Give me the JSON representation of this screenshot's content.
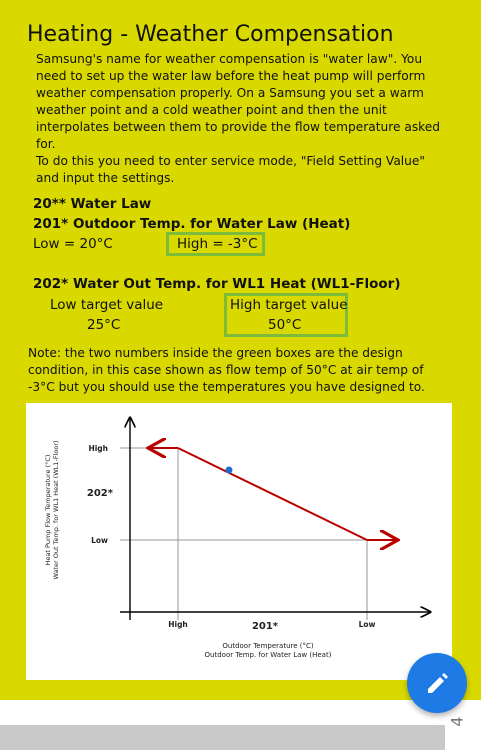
{
  "title": "Heating - Weather Compensation",
  "paragraphs": [
    "Samsung's name for weather compensation is \"water law\". You need to set up the water law before the heat pump will perform weather compensation properly. On a Samsung you set a warm weather point and a cold weather point and then the unit interpolates between them to provide the flow temperature asked for.",
    "To do this you need to enter service mode, \"Field Setting Value\" and input the settings."
  ],
  "water_law": {
    "heading": "20** Water Law",
    "subheading": "201* Outdoor Temp. for Water Law (Heat)",
    "low": "Low = 20°C",
    "high": "High = -3°C"
  },
  "flow": {
    "heading": "202* Water Out Temp. for WL1 Heat (WL1-Floor)",
    "low_label": "Low target value",
    "low_value": "25°C",
    "high_label": "High target value",
    "high_value": "50°C"
  },
  "note": "Note: the two numbers inside the green boxes are the design condition, in this case shown as flow temp of 50°C at air temp of -3°C but you should use the temperatures you have designed to.",
  "diagram": {
    "y_axis_title": [
      "Heat Pump Flow Temperature (°C)",
      "Water Out Temp. for WL1 Heat (WL1-Floor)"
    ],
    "y_high": "High",
    "y_code": "202*",
    "y_low": "Low",
    "x_high": "High",
    "x_code": "201*",
    "x_low": "Low",
    "x_axis_title": [
      "Outdoor Temperature (°C)",
      "Outdoor Temp. for Water Law (Heat)"
    ]
  },
  "page_number": "4"
}
